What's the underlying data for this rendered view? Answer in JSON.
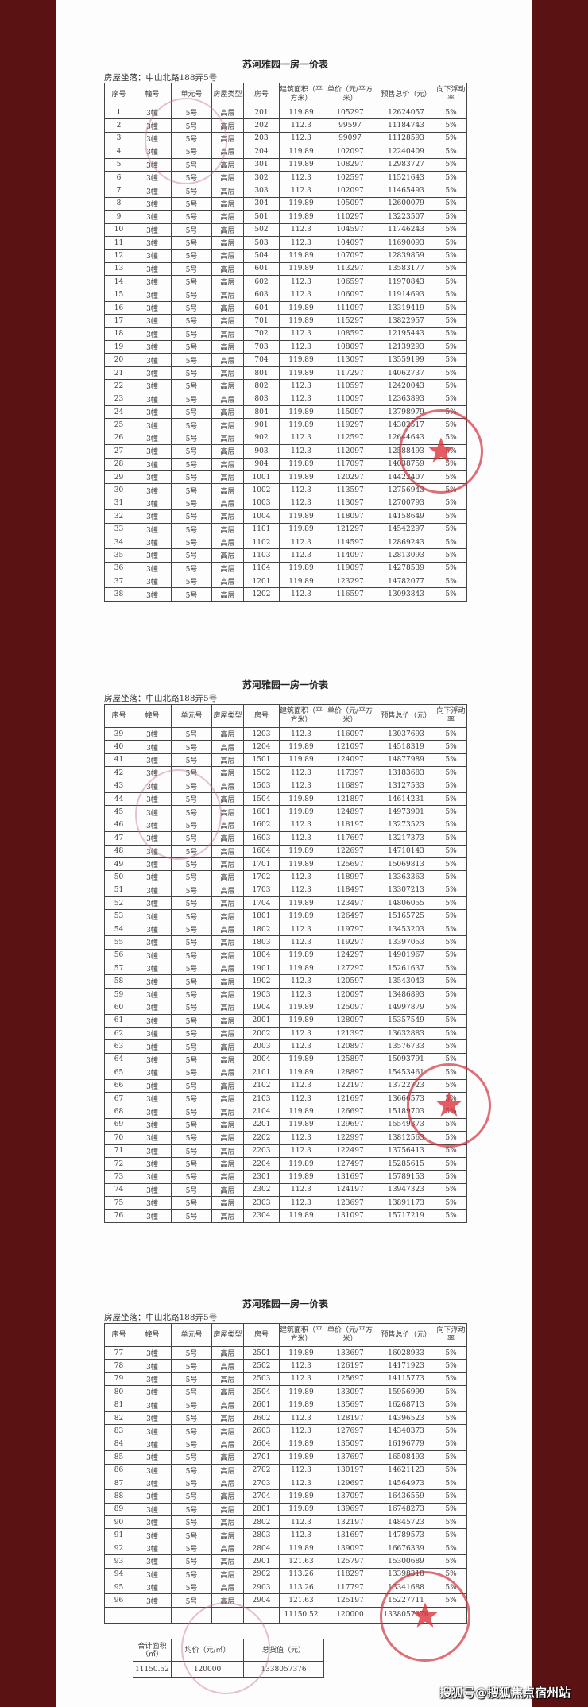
{
  "columns": [
    "序号",
    "幢号",
    "单元号",
    "房屋类型",
    "房号",
    "建筑面积（平方米）",
    "单价（元/平方米）",
    "预售总价（元）",
    "向下浮动率"
  ],
  "constants": {
    "building": "3幢",
    "unit": "5号",
    "type": "高层",
    "rate": "5%"
  },
  "sheets": [
    {
      "title": "苏河雅园一房一价表",
      "address": "房屋坐落：中山北路188弄5号",
      "rows": [
        [
          "1",
          "201",
          "119.89",
          "105297",
          "12624057"
        ],
        [
          "2",
          "202",
          "112.3",
          "99597",
          "11184743"
        ],
        [
          "3",
          "203",
          "112.3",
          "99097",
          "11128593"
        ],
        [
          "4",
          "204",
          "119.89",
          "102097",
          "12240409"
        ],
        [
          "5",
          "301",
          "119.89",
          "108297",
          "12983727"
        ],
        [
          "6",
          "302",
          "112.3",
          "102597",
          "11521643"
        ],
        [
          "7",
          "303",
          "112.3",
          "102097",
          "11465493"
        ],
        [
          "8",
          "304",
          "119.89",
          "105097",
          "12600079"
        ],
        [
          "9",
          "501",
          "119.89",
          "110297",
          "13223507"
        ],
        [
          "10",
          "502",
          "112.3",
          "104597",
          "11746243"
        ],
        [
          "11",
          "503",
          "112.3",
          "104097",
          "11690093"
        ],
        [
          "12",
          "504",
          "119.89",
          "107097",
          "12839859"
        ],
        [
          "13",
          "601",
          "119.89",
          "113297",
          "13583177"
        ],
        [
          "14",
          "602",
          "112.3",
          "106597",
          "11970843"
        ],
        [
          "15",
          "603",
          "112.3",
          "106097",
          "11914693"
        ],
        [
          "16",
          "604",
          "119.89",
          "111097",
          "13319419"
        ],
        [
          "17",
          "701",
          "119.89",
          "115297",
          "13822957"
        ],
        [
          "18",
          "702",
          "112.3",
          "108597",
          "12195443"
        ],
        [
          "19",
          "703",
          "112.3",
          "108097",
          "12139293"
        ],
        [
          "20",
          "704",
          "119.89",
          "113097",
          "13559199"
        ],
        [
          "21",
          "801",
          "119.89",
          "117297",
          "14062737"
        ],
        [
          "22",
          "802",
          "112.3",
          "110597",
          "12420043"
        ],
        [
          "23",
          "803",
          "112.3",
          "110097",
          "12363893"
        ],
        [
          "24",
          "804",
          "119.89",
          "115097",
          "13798979"
        ],
        [
          "25",
          "901",
          "119.89",
          "119297",
          "14302517"
        ],
        [
          "26",
          "902",
          "112.3",
          "112597",
          "12644643"
        ],
        [
          "27",
          "903",
          "112.3",
          "112097",
          "12588493"
        ],
        [
          "28",
          "904",
          "119.89",
          "117097",
          "14038759"
        ],
        [
          "29",
          "1001",
          "119.89",
          "120297",
          "14422407"
        ],
        [
          "30",
          "1002",
          "112.3",
          "113597",
          "12756943"
        ],
        [
          "31",
          "1003",
          "112.3",
          "113097",
          "12700793"
        ],
        [
          "32",
          "1004",
          "119.89",
          "118097",
          "14158649"
        ],
        [
          "33",
          "1101",
          "119.89",
          "121297",
          "14542297"
        ],
        [
          "34",
          "1102",
          "112.3",
          "114597",
          "12869243"
        ],
        [
          "35",
          "1103",
          "112.3",
          "114097",
          "12813093"
        ],
        [
          "36",
          "1104",
          "119.89",
          "119097",
          "14278539"
        ],
        [
          "37",
          "1201",
          "119.89",
          "123297",
          "14782077"
        ],
        [
          "38",
          "1202",
          "112.3",
          "116597",
          "13093843"
        ]
      ]
    },
    {
      "title": "苏河雅园一房一价表",
      "address": "房屋坐落：中山北路188弄5号",
      "rows": [
        [
          "39",
          "1203",
          "112.3",
          "116097",
          "13037693"
        ],
        [
          "40",
          "1204",
          "119.89",
          "121097",
          "14518319"
        ],
        [
          "41",
          "1501",
          "119.89",
          "124097",
          "14877989"
        ],
        [
          "42",
          "1502",
          "112.3",
          "117397",
          "13183683"
        ],
        [
          "43",
          "1503",
          "112.3",
          "116897",
          "13127533"
        ],
        [
          "44",
          "1504",
          "119.89",
          "121897",
          "14614231"
        ],
        [
          "45",
          "1601",
          "119.89",
          "124897",
          "14973901"
        ],
        [
          "46",
          "1602",
          "112.3",
          "118197",
          "13273523"
        ],
        [
          "47",
          "1603",
          "112.3",
          "117697",
          "13217373"
        ],
        [
          "48",
          "1604",
          "119.89",
          "122697",
          "14710143"
        ],
        [
          "49",
          "1701",
          "119.89",
          "125697",
          "15069813"
        ],
        [
          "50",
          "1702",
          "112.3",
          "118997",
          "13363363"
        ],
        [
          "51",
          "1703",
          "112.3",
          "118497",
          "13307213"
        ],
        [
          "52",
          "1704",
          "119.89",
          "123497",
          "14806055"
        ],
        [
          "53",
          "1801",
          "119.89",
          "126497",
          "15165725"
        ],
        [
          "54",
          "1802",
          "112.3",
          "119797",
          "13453203"
        ],
        [
          "55",
          "1803",
          "112.3",
          "119297",
          "13397053"
        ],
        [
          "56",
          "1804",
          "119.89",
          "124297",
          "14901967"
        ],
        [
          "57",
          "1901",
          "119.89",
          "127297",
          "15261637"
        ],
        [
          "58",
          "1902",
          "112.3",
          "120597",
          "13543043"
        ],
        [
          "59",
          "1903",
          "112.3",
          "120097",
          "13486893"
        ],
        [
          "60",
          "1904",
          "119.89",
          "125097",
          "14997879"
        ],
        [
          "61",
          "2001",
          "119.89",
          "128097",
          "15357549"
        ],
        [
          "62",
          "2002",
          "112.3",
          "121397",
          "13632883"
        ],
        [
          "63",
          "2003",
          "112.3",
          "120897",
          "13576733"
        ],
        [
          "64",
          "2004",
          "119.89",
          "125897",
          "15093791"
        ],
        [
          "65",
          "2101",
          "119.89",
          "128897",
          "15453461"
        ],
        [
          "66",
          "2102",
          "112.3",
          "122197",
          "13722723"
        ],
        [
          "67",
          "2103",
          "112.3",
          "121697",
          "13666573"
        ],
        [
          "68",
          "2104",
          "119.89",
          "126697",
          "15189703"
        ],
        [
          "69",
          "2201",
          "119.89",
          "129697",
          "15549373"
        ],
        [
          "70",
          "2202",
          "112.3",
          "122997",
          "13812563"
        ],
        [
          "71",
          "2203",
          "112.3",
          "122497",
          "13756413"
        ],
        [
          "72",
          "2204",
          "119.89",
          "127497",
          "15285615"
        ],
        [
          "73",
          "2301",
          "119.89",
          "131697",
          "15789153"
        ],
        [
          "74",
          "2302",
          "112.3",
          "124197",
          "13947323"
        ],
        [
          "75",
          "2303",
          "112.3",
          "123697",
          "13891173"
        ],
        [
          "76",
          "2304",
          "119.89",
          "131097",
          "15717219"
        ]
      ]
    },
    {
      "title": "苏河雅园一房一价表",
      "address": "房屋坐落：中山北路188弄5号",
      "rows": [
        [
          "77",
          "2501",
          "119.89",
          "133697",
          "16028933"
        ],
        [
          "78",
          "2502",
          "112.3",
          "126197",
          "14171923"
        ],
        [
          "79",
          "2503",
          "112.3",
          "125697",
          "14115773"
        ],
        [
          "80",
          "2504",
          "119.89",
          "133097",
          "15956999"
        ],
        [
          "81",
          "2601",
          "119.89",
          "135697",
          "16268713"
        ],
        [
          "82",
          "2602",
          "112.3",
          "128197",
          "14396523"
        ],
        [
          "83",
          "2603",
          "112.3",
          "127697",
          "14340373"
        ],
        [
          "84",
          "2604",
          "119.89",
          "135097",
          "16196779"
        ],
        [
          "85",
          "2701",
          "119.89",
          "137697",
          "16508493"
        ],
        [
          "86",
          "2702",
          "112.3",
          "130197",
          "14621123"
        ],
        [
          "87",
          "2703",
          "112.3",
          "129697",
          "14564973"
        ],
        [
          "88",
          "2704",
          "119.89",
          "137097",
          "16436559"
        ],
        [
          "89",
          "2801",
          "119.89",
          "139697",
          "16748273"
        ],
        [
          "90",
          "2802",
          "112.3",
          "132197",
          "14845723"
        ],
        [
          "91",
          "2803",
          "112.3",
          "131697",
          "14789573"
        ],
        [
          "92",
          "2804",
          "119.89",
          "139097",
          "16676339"
        ],
        [
          "93",
          "2901",
          "121.63",
          "125797",
          "15300689"
        ],
        [
          "94",
          "2902",
          "113.26",
          "118297",
          "13398318"
        ],
        [
          "95",
          "2903",
          "113.26",
          "117797",
          "13341688"
        ],
        [
          "96",
          "2904",
          "121.63",
          "125197",
          "15227711"
        ]
      ],
      "total_row": {
        "area": "11150.52",
        "price": "120000",
        "total": "1338057376"
      }
    }
  ],
  "summary": {
    "headers": [
      "合计面积（㎡）",
      "均价（元/㎡）",
      "总货值（元）"
    ],
    "values": [
      "11150.52",
      "120000",
      "1338057376"
    ]
  },
  "watermark": "搜狐号@搜狐焦点宿州站",
  "colors": {
    "background": "#5a1212",
    "paper": "#fdfdfd",
    "stamp": "#d2323c"
  }
}
